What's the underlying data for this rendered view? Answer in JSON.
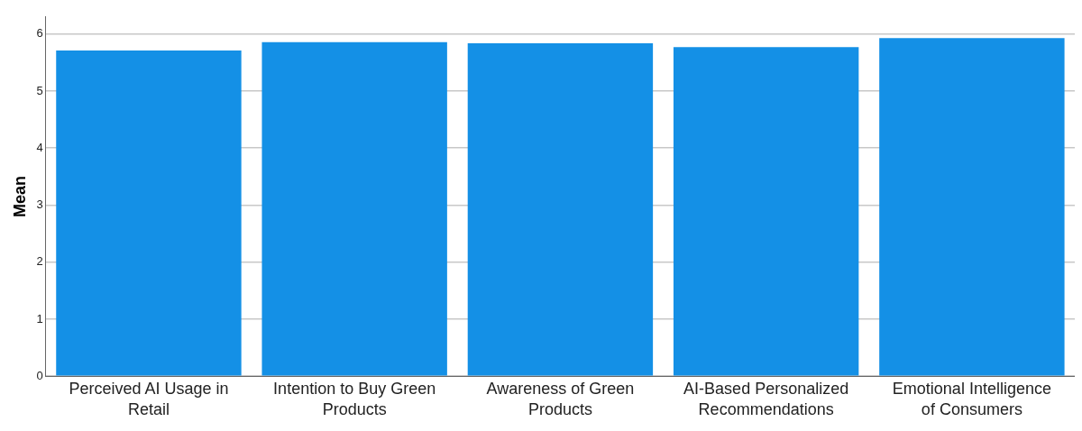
{
  "chart_data": {
    "type": "bar",
    "ylabel": "Mean",
    "categories": [
      "Perceived AI Usage in Retail",
      "Intention to Buy Green Products",
      "Awareness of Green Products",
      "AI-Based Personalized Recommendations",
      "Emotional Intelligence of Consumers"
    ],
    "values": [
      5.71,
      5.86,
      5.84,
      5.77,
      5.93
    ],
    "color": "#1490e6",
    "ylim": [
      0,
      6.3
    ],
    "yticks": [
      0,
      1,
      2,
      3,
      4,
      5,
      6
    ],
    "grid": "y",
    "legend": false
  }
}
